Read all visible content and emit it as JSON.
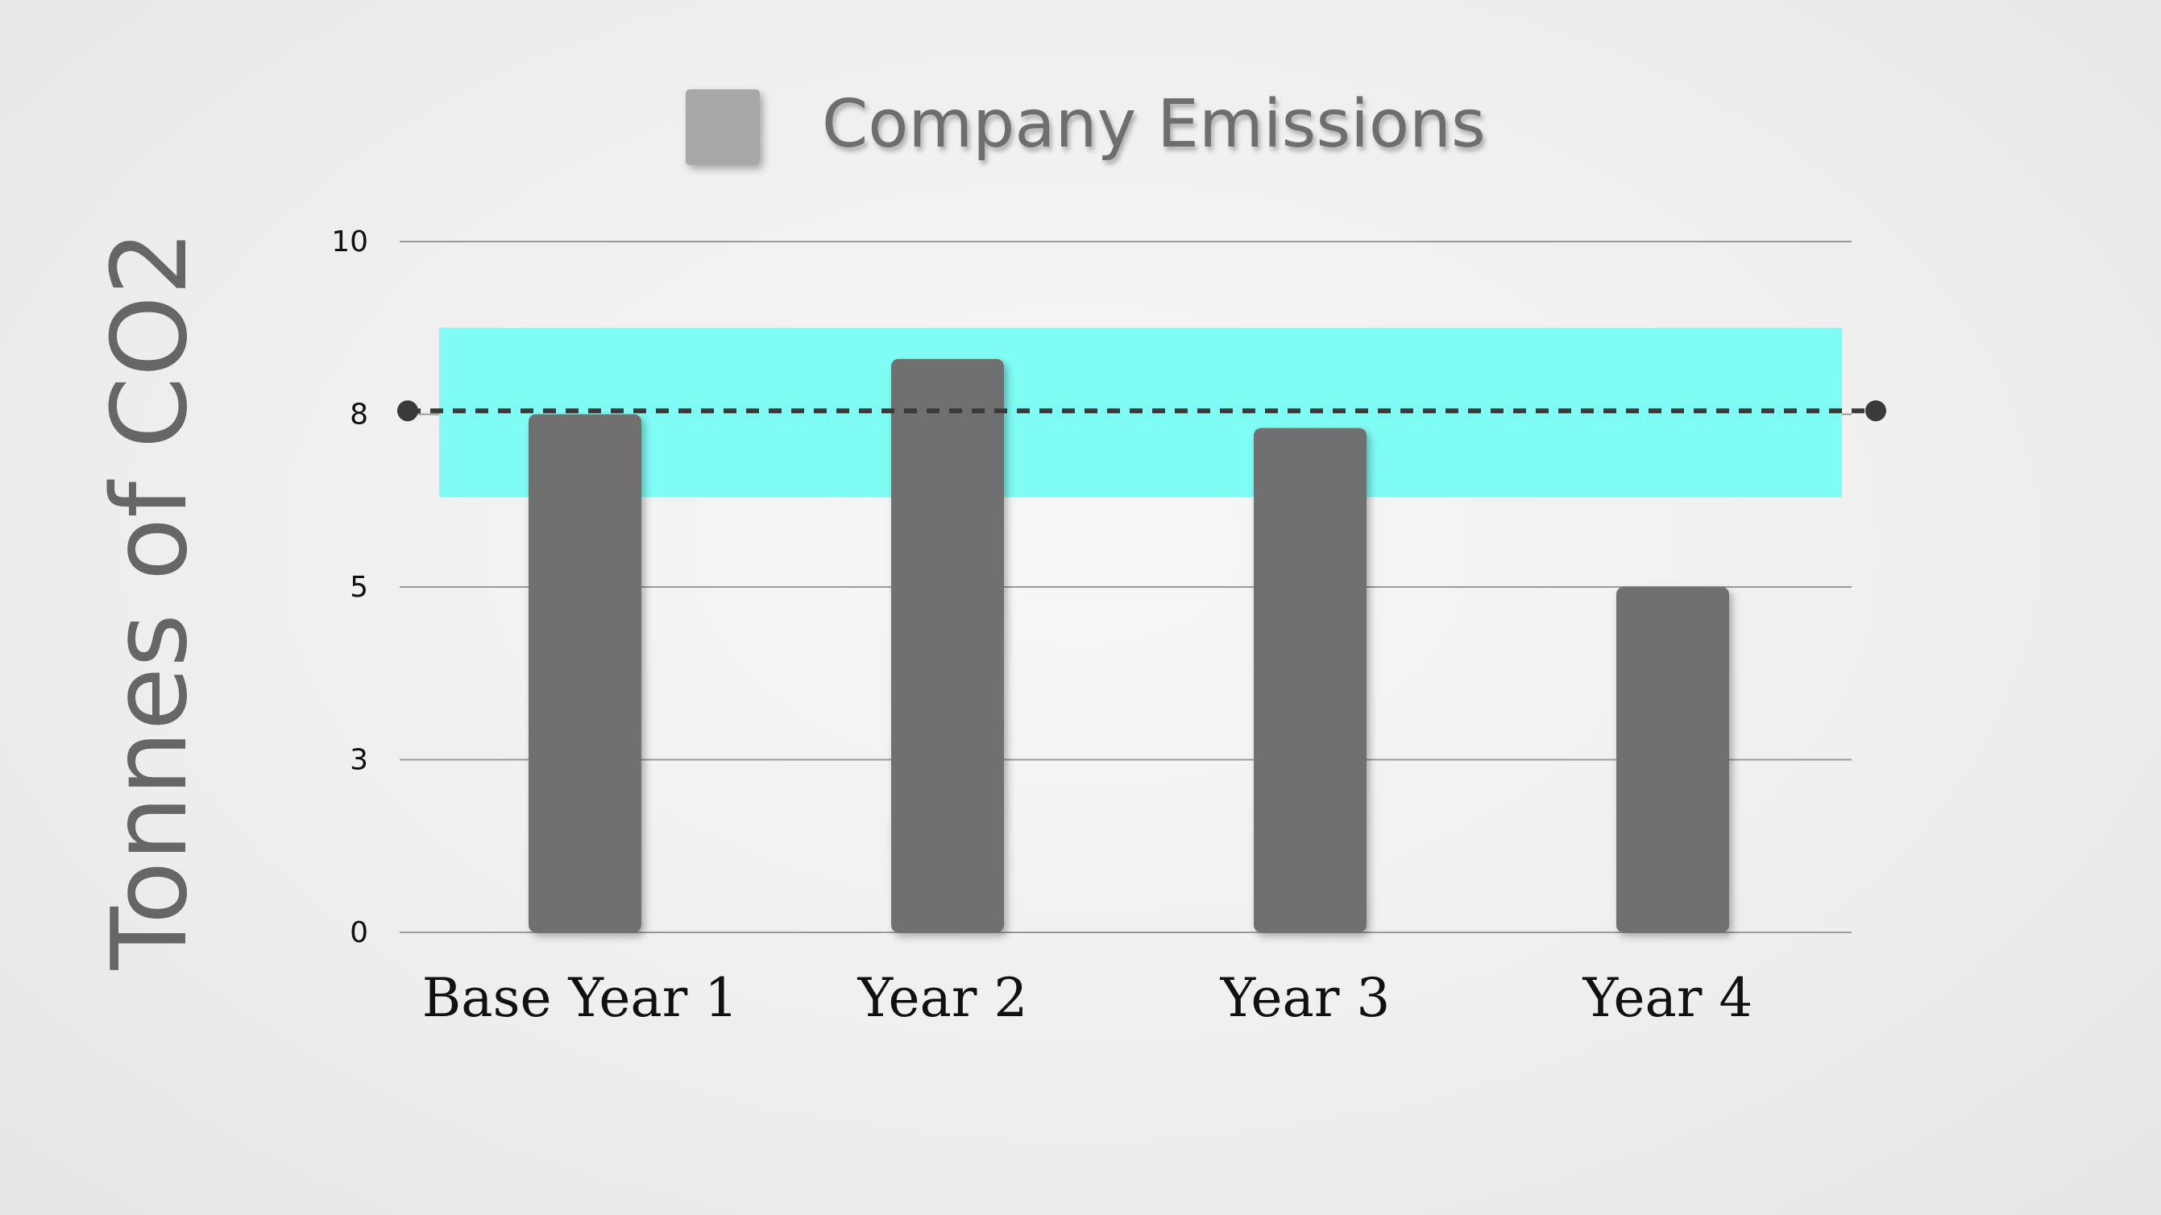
{
  "chart_data": {
    "type": "bar",
    "categories": [
      "Base Year 1",
      "Year 2",
      "Year 3",
      "Year 4"
    ],
    "series": [
      {
        "name": "Company Emissions",
        "values": [
          7.5,
          8.3,
          7.3,
          5.0
        ]
      }
    ],
    "ylabel": "Tonnes of CO2",
    "xlabel": "",
    "yticks": [
      {
        "value": 0,
        "label": "0"
      },
      {
        "value": 2.5,
        "label": "3"
      },
      {
        "value": 5,
        "label": "5"
      },
      {
        "value": 7.5,
        "label": "8"
      },
      {
        "value": 10,
        "label": "10"
      }
    ],
    "ylim": [
      0,
      10
    ],
    "grid": true,
    "legend_position": "top-center",
    "reference_line": {
      "value": 7.55,
      "style": "dashed"
    },
    "band": {
      "from": 6.3,
      "to": 8.75
    },
    "colors": {
      "bar": "#6f6f6f",
      "legend_swatch": "#a8a8a8",
      "band": "#7ffdf5",
      "grid": "#9a9a9a",
      "reference_line": "#3a3a3a",
      "axis_title": "#666666",
      "legend_text": "#6e6e6e",
      "text": "#111111"
    }
  }
}
